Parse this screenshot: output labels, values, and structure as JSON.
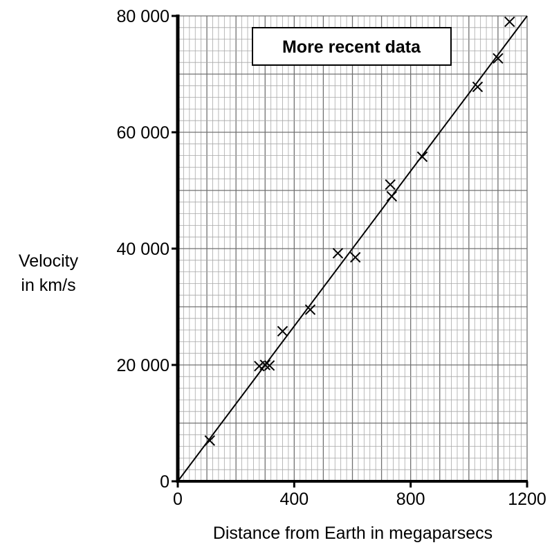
{
  "chart_data": {
    "type": "scatter",
    "title": "",
    "annotation": "More recent data",
    "xlabel": "Distance from Earth in megaparsecs",
    "ylabel": [
      "Velocity",
      "in km/s"
    ],
    "xlim": [
      0,
      1200
    ],
    "ylim": [
      0,
      80000
    ],
    "x_ticks": [
      0,
      400,
      800,
      1200
    ],
    "x_tick_labels": [
      "0",
      "400",
      "800",
      "1200"
    ],
    "y_ticks": [
      0,
      20000,
      40000,
      60000,
      80000
    ],
    "y_tick_labels": [
      "0",
      "20 000",
      "40 000",
      "60 000",
      "80 000"
    ],
    "grid": true,
    "marker": "x",
    "series": [
      {
        "points": [
          {
            "x": 110,
            "y": 7000
          },
          {
            "x": 280,
            "y": 19800
          },
          {
            "x": 300,
            "y": 20000
          },
          {
            "x": 315,
            "y": 19900
          },
          {
            "x": 360,
            "y": 25800
          },
          {
            "x": 455,
            "y": 29500
          },
          {
            "x": 550,
            "y": 39200
          },
          {
            "x": 610,
            "y": 38500
          },
          {
            "x": 730,
            "y": 51000
          },
          {
            "x": 735,
            "y": 49000
          },
          {
            "x": 840,
            "y": 55800
          },
          {
            "x": 1030,
            "y": 67800
          },
          {
            "x": 1100,
            "y": 72700
          },
          {
            "x": 1140,
            "y": 79000
          }
        ]
      }
    ],
    "fit_line": {
      "x": [
        0,
        1200
      ],
      "y": [
        0,
        80000
      ]
    }
  }
}
